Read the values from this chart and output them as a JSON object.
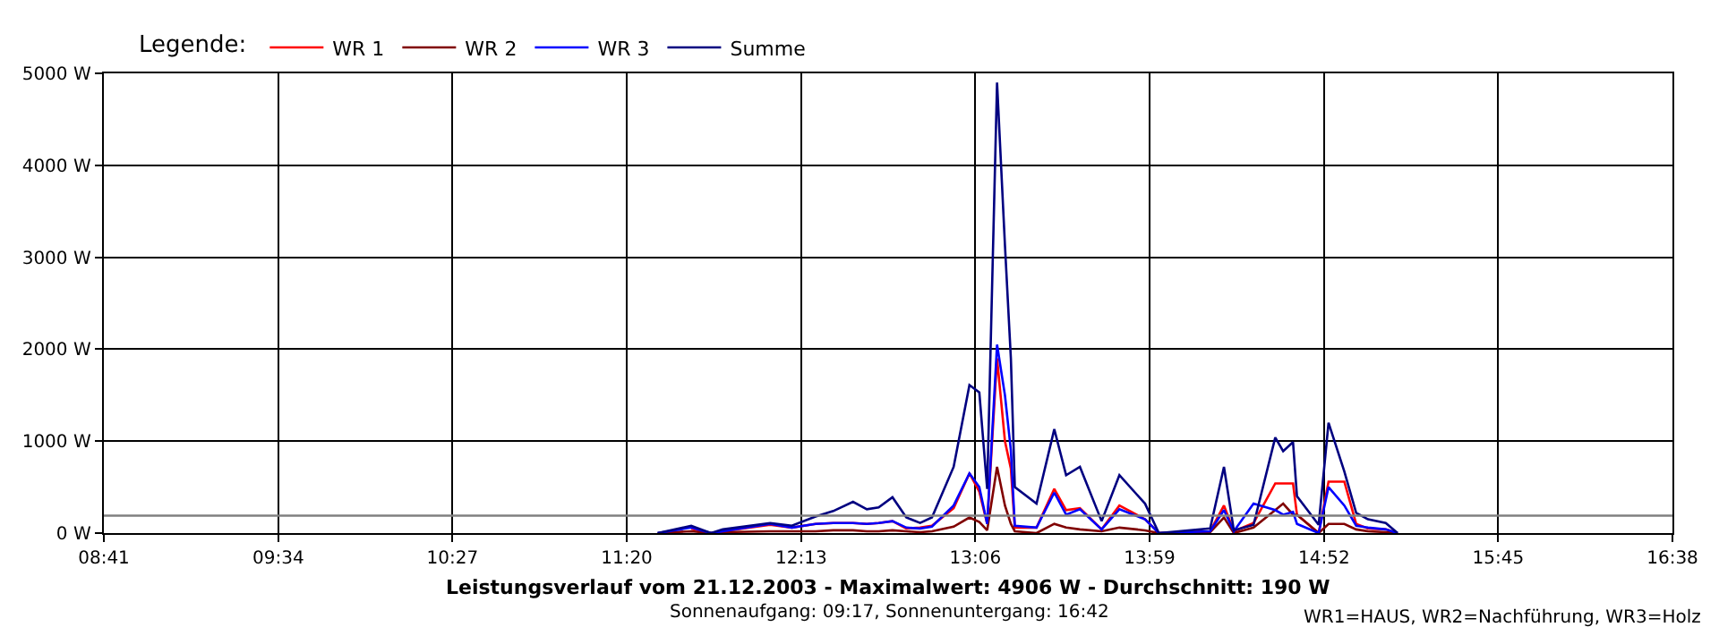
{
  "chart_data": {
    "type": "line",
    "title": "Leistungsverlauf vom 21.12.2003 - Maximalwert: 4906 W - Durchschnitt: 190 W",
    "subtitle": "Sonnenaufgang: 09:17, Sonnenuntergang: 16:42",
    "annotations": [
      "WR1=HAUS, WR2=Nachführung, WR3=Holz"
    ],
    "legend_title": "Legende:",
    "legend": "top left",
    "grid": true,
    "x": [
      11.49,
      11.66,
      11.76,
      11.82,
      12.06,
      12.17,
      12.29,
      12.38,
      12.48,
      12.55,
      12.61,
      12.68,
      12.75,
      12.82,
      12.88,
      12.99,
      13.07,
      13.12,
      13.16,
      13.21,
      13.25,
      13.28,
      13.3,
      13.41,
      13.5,
      13.56,
      13.63,
      13.74,
      13.83,
      13.96,
      14.03,
      14.29,
      14.36,
      14.41,
      14.51,
      14.62,
      14.66,
      14.71,
      14.73,
      14.84,
      14.89,
      14.97,
      15.03,
      15.09,
      15.18,
      15.24
    ],
    "series": [
      {
        "name": "WR 1",
        "color": "#ff0000",
        "values": [
          null,
          50,
          0,
          20,
          90,
          60,
          100,
          110,
          110,
          100,
          110,
          130,
          50,
          60,
          80,
          270,
          650,
          450,
          100,
          1900,
          1000,
          700,
          60,
          60,
          480,
          250,
          270,
          40,
          300,
          150,
          0,
          20,
          300,
          20,
          110,
          540,
          540,
          540,
          200,
          0,
          560,
          560,
          100,
          50,
          40,
          0
        ]
      },
      {
        "name": "WR 2",
        "color": "#800000",
        "values": [
          0,
          20,
          0,
          10,
          20,
          20,
          20,
          30,
          30,
          20,
          20,
          30,
          20,
          10,
          20,
          70,
          170,
          120,
          30,
          720,
          300,
          100,
          20,
          0,
          100,
          60,
          40,
          20,
          60,
          30,
          0,
          10,
          170,
          0,
          60,
          250,
          320,
          200,
          200,
          0,
          100,
          100,
          40,
          20,
          10,
          0
        ]
      },
      {
        "name": "WR 3",
        "color": "#0000ff",
        "values": [
          0,
          60,
          0,
          20,
          100,
          60,
          100,
          110,
          110,
          100,
          110,
          130,
          60,
          50,
          70,
          300,
          650,
          500,
          100,
          2050,
          1500,
          900,
          80,
          60,
          440,
          200,
          260,
          40,
          260,
          150,
          0,
          20,
          250,
          20,
          320,
          250,
          200,
          230,
          100,
          0,
          500,
          300,
          80,
          60,
          40,
          0
        ]
      },
      {
        "name": "Summe",
        "color": "#000080",
        "values": [
          0,
          80,
          0,
          40,
          110,
          80,
          180,
          240,
          340,
          260,
          280,
          390,
          170,
          110,
          170,
          720,
          1610,
          1530,
          480,
          4900,
          3130,
          1900,
          500,
          320,
          1130,
          630,
          720,
          130,
          630,
          320,
          0,
          50,
          720,
          30,
          90,
          1040,
          890,
          990,
          400,
          90,
          1200,
          670,
          220,
          150,
          110,
          0
        ]
      }
    ],
    "ref_lines": [
      {
        "axis": "y",
        "value": 190,
        "color": "#808080"
      }
    ],
    "xlim": [
      8.683,
      16.633
    ],
    "xticks": [
      {
        "value": 8.683,
        "label": "08:41"
      },
      {
        "value": 9.567,
        "label": "09:34"
      },
      {
        "value": 10.45,
        "label": "10:27"
      },
      {
        "value": 11.333,
        "label": "11:20"
      },
      {
        "value": 12.217,
        "label": "12:13"
      },
      {
        "value": 13.1,
        "label": "13:06"
      },
      {
        "value": 13.983,
        "label": "13:59"
      },
      {
        "value": 14.867,
        "label": "14:52"
      },
      {
        "value": 15.75,
        "label": "15:45"
      },
      {
        "value": 16.633,
        "label": "16:38"
      }
    ],
    "ylim": [
      0,
      5000
    ],
    "yticks": [
      {
        "value": 0,
        "label": "0 W"
      },
      {
        "value": 1000,
        "label": "1000 W"
      },
      {
        "value": 2000,
        "label": "2000 W"
      },
      {
        "value": 3000,
        "label": "3000 W"
      },
      {
        "value": 4000,
        "label": "4000 W"
      },
      {
        "value": 5000,
        "label": "5000 W"
      }
    ]
  }
}
